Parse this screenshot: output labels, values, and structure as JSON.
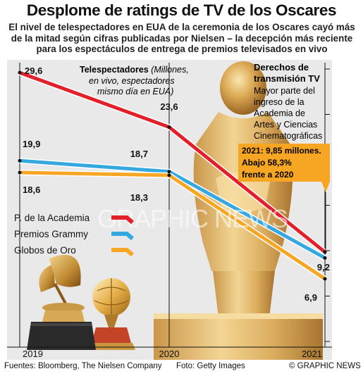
{
  "title": "Desplome de ratings de TV de los Oscares",
  "subtitle": "El nivel de telespectadores en EUA de la ceremonia de los Oscares cayó más de la mitad según cifras publicadas por Nielsen – la decepción más reciente para los espectáculos de entrega de premios televisados en vivo",
  "annotation_left": {
    "bold": "Telespectadores",
    "italic_1": " (Millones,",
    "italic_2": "en vivo, espectadores",
    "italic_3": "mismo día en EUA)"
  },
  "annotation_right": {
    "heading_1": "Derechos de",
    "heading_2": "transmisión TV",
    "lines": [
      "Mayor parte del",
      "ingreso de la",
      "Academia de",
      "Artes y Ciencias",
      "Cinematográficas"
    ]
  },
  "callout": {
    "lines": [
      "2021: 9,85 millones.",
      "Abajo 58,3%",
      "frente a 2020"
    ],
    "color": "#f6a623"
  },
  "watermark": "GRAPHIC NEWS",
  "footer": {
    "sources": "Fuentes: Bloomberg, The Nielsen Company",
    "photo": "Foto: Getty Images",
    "credit": "© GRAPHIC NEWS"
  },
  "chart_data": {
    "type": "line",
    "x": [
      "2019",
      "2020",
      "2021"
    ],
    "ylim": [
      0,
      30
    ],
    "yticks": [
      "0",
      "5",
      "10",
      "15",
      "20",
      "25",
      "30"
    ],
    "series": [
      {
        "name": "P. de la Academia",
        "values": [
          29.6,
          23.6,
          9.85
        ],
        "labels": [
          "29,6",
          "23,6",
          ""
        ],
        "color": "#e3202a"
      },
      {
        "name": "Premios Grammy",
        "values": [
          19.9,
          18.7,
          9.2
        ],
        "labels": [
          "19,9",
          "18,7",
          "9,2"
        ],
        "color": "#35a8e0"
      },
      {
        "name": "Globos de Oro",
        "values": [
          18.6,
          18.3,
          6.9
        ],
        "labels": [
          "18,6",
          "18,3",
          "6,9"
        ],
        "color": "#f6a623"
      }
    ]
  }
}
